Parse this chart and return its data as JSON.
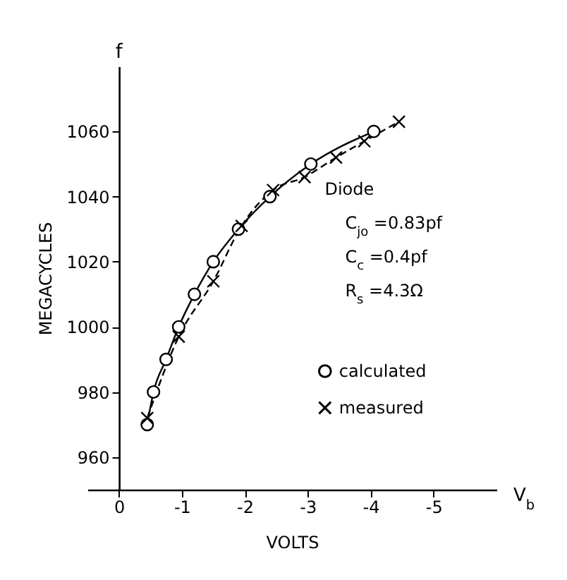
{
  "chart_data": {
    "type": "line",
    "xlabel": "VOLTS",
    "ylabel": "MEGACYCLES",
    "annotations": [
      "f",
      "V$_{b}$",
      "Diode",
      "C$_{jo}$ =0.83pf",
      "C$_{c}$ =0.4pf",
      "R$_{s}$ =4.3Ω"
    ],
    "xlim": [
      0.5,
      -6
    ],
    "xticks": [
      0,
      -1,
      -2,
      -3,
      -4,
      -5
    ],
    "ylim": [
      950,
      1080
    ],
    "yticks": [
      960,
      980,
      1000,
      1020,
      1040,
      1060
    ],
    "grid": false,
    "legend": "right",
    "series": [
      {
        "name": "calculated",
        "color": "#000000",
        "marker": "circle",
        "line_style": "solid",
        "x": [
          -0.45,
          -0.55,
          -0.75,
          -0.95,
          -1.2,
          -1.5,
          -1.9,
          -2.4,
          -3.05,
          -4.05
        ],
        "values": [
          970,
          980,
          990,
          1000,
          1010,
          1020,
          1030,
          1040,
          1050,
          1060
        ]
      },
      {
        "name": "measured",
        "color": "#000000",
        "marker": "cross",
        "line_style": "dashed",
        "x": [
          -0.45,
          -0.95,
          -1.5,
          -1.95,
          -2.45,
          -2.95,
          -3.45,
          -3.9,
          -4.45
        ],
        "values": [
          972,
          997,
          1014,
          1031,
          1042,
          1046,
          1052,
          1057,
          1063
        ]
      }
    ]
  }
}
